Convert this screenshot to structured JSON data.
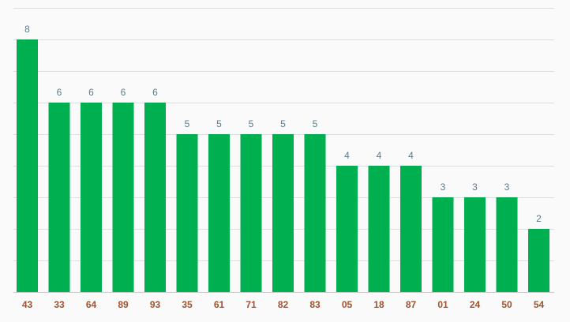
{
  "chart_data": {
    "type": "bar",
    "title": "",
    "xlabel": "",
    "ylabel": "",
    "categories": [
      "43",
      "33",
      "64",
      "89",
      "93",
      "35",
      "61",
      "71",
      "82",
      "83",
      "05",
      "18",
      "87",
      "01",
      "24",
      "50",
      "54"
    ],
    "values": [
      8,
      6,
      6,
      6,
      6,
      5,
      5,
      5,
      5,
      5,
      4,
      4,
      4,
      3,
      3,
      3,
      2
    ],
    "ylim": [
      0,
      9
    ],
    "grid": true,
    "legend": "none",
    "bar_color": "#00b050",
    "value_label_color": "#5b7b8a",
    "category_label_color": "#a0522d",
    "grid_color": "#dedede"
  }
}
